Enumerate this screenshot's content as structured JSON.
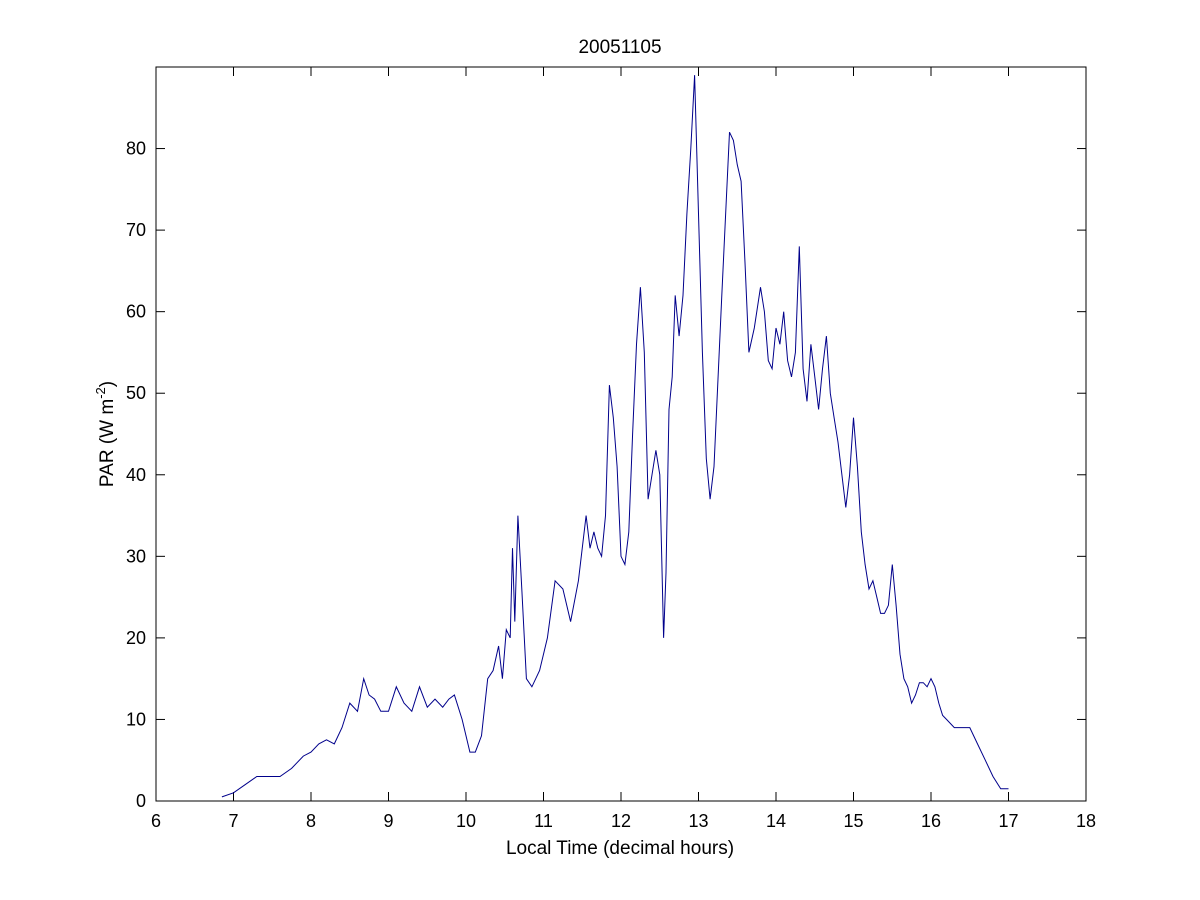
{
  "chart_data": {
    "type": "line",
    "title": "20051105",
    "xlabel": "Local Time (decimal hours)",
    "ylabel_main": "PAR (W m",
    "ylabel_sup": "-2",
    "ylabel_close": ")",
    "xlim": [
      6,
      18
    ],
    "ylim": [
      0,
      90
    ],
    "xticks": [
      6,
      7,
      8,
      9,
      10,
      11,
      12,
      13,
      14,
      15,
      16,
      17,
      18
    ],
    "yticks": [
      0,
      10,
      20,
      30,
      40,
      50,
      60,
      70,
      80
    ],
    "grid": false,
    "line_color": "#00008b",
    "series": [
      {
        "x": [
          6.85,
          7.0,
          7.15,
          7.3,
          7.45,
          7.6,
          7.75,
          7.9,
          8.0,
          8.1,
          8.2,
          8.3,
          8.4,
          8.5,
          8.6,
          8.68,
          8.75,
          8.82,
          8.9,
          9.0,
          9.1,
          9.2,
          9.3,
          9.4,
          9.5,
          9.6,
          9.7,
          9.78,
          9.85,
          9.95,
          10.05,
          10.12,
          10.2,
          10.28,
          10.35,
          10.42,
          10.47,
          10.52,
          10.57,
          10.6,
          10.63,
          10.67,
          10.72,
          10.78,
          10.85,
          10.95,
          11.05,
          11.15,
          11.25,
          11.35,
          11.45,
          11.55,
          11.6,
          11.65,
          11.7,
          11.75,
          11.8,
          11.85,
          11.9,
          11.95,
          12.0,
          12.05,
          12.1,
          12.15,
          12.2,
          12.25,
          12.3,
          12.35,
          12.4,
          12.45,
          12.5,
          12.55,
          12.58,
          12.62,
          12.66,
          12.7,
          12.75,
          12.8,
          12.85,
          12.9,
          12.95,
          13.0,
          13.05,
          13.1,
          13.15,
          13.2,
          13.3,
          13.4,
          13.45,
          13.5,
          13.55,
          13.6,
          13.65,
          13.72,
          13.8,
          13.85,
          13.9,
          13.95,
          14.0,
          14.05,
          14.1,
          14.15,
          14.2,
          14.25,
          14.3,
          14.35,
          14.4,
          14.45,
          14.5,
          14.55,
          14.6,
          14.65,
          14.7,
          14.75,
          14.8,
          14.85,
          14.9,
          14.95,
          15.0,
          15.05,
          15.1,
          15.15,
          15.2,
          15.25,
          15.3,
          15.35,
          15.4,
          15.45,
          15.5,
          15.55,
          15.6,
          15.65,
          15.7,
          15.75,
          15.8,
          15.85,
          15.9,
          15.95,
          16.0,
          16.05,
          16.1,
          16.15,
          16.2,
          16.3,
          16.4,
          16.5,
          16.6,
          16.7,
          16.8,
          16.9,
          17.0
        ],
        "y": [
          0.5,
          1.0,
          2.0,
          3.0,
          3.0,
          3.0,
          4.0,
          5.5,
          6.0,
          7.0,
          7.5,
          7.0,
          9.0,
          12.0,
          11.0,
          15.0,
          13.0,
          12.5,
          11.0,
          11.0,
          14.0,
          12.0,
          11.0,
          14.0,
          11.5,
          12.5,
          11.5,
          12.5,
          13.0,
          10.0,
          6.0,
          6.0,
          8.0,
          15.0,
          16.0,
          19.0,
          15.0,
          21.0,
          20.0,
          31.0,
          22.0,
          35.0,
          26.0,
          15.0,
          14.0,
          16.0,
          20.0,
          27.0,
          26.0,
          22.0,
          27.0,
          35.0,
          31.0,
          33.0,
          31.0,
          30.0,
          35.0,
          51.0,
          47.0,
          41.0,
          30.0,
          29.0,
          33.0,
          45.0,
          56.0,
          63.0,
          55.0,
          37.0,
          40.0,
          43.0,
          40.0,
          20.0,
          28.0,
          48.0,
          52.0,
          62.0,
          57.0,
          62.0,
          72.0,
          80.0,
          89.0,
          72.0,
          55.0,
          42.0,
          37.0,
          41.0,
          62.0,
          82.0,
          81.0,
          78.0,
          76.0,
          66.0,
          55.0,
          58.0,
          63.0,
          60.0,
          54.0,
          53.0,
          58.0,
          56.0,
          60.0,
          54.0,
          52.0,
          55.0,
          68.0,
          53.0,
          49.0,
          56.0,
          52.0,
          48.0,
          53.0,
          57.0,
          50.0,
          47.0,
          44.0,
          40.0,
          36.0,
          40.0,
          47.0,
          41.0,
          33.0,
          29.0,
          26.0,
          27.0,
          25.0,
          23.0,
          23.0,
          24.0,
          29.0,
          24.0,
          18.0,
          15.0,
          14.0,
          12.0,
          13.0,
          14.5,
          14.5,
          14.0,
          15.0,
          14.0,
          12.0,
          10.5,
          10.0,
          9.0,
          9.0,
          9.0,
          7.0,
          5.0,
          3.0,
          1.5,
          1.5
        ]
      }
    ]
  }
}
